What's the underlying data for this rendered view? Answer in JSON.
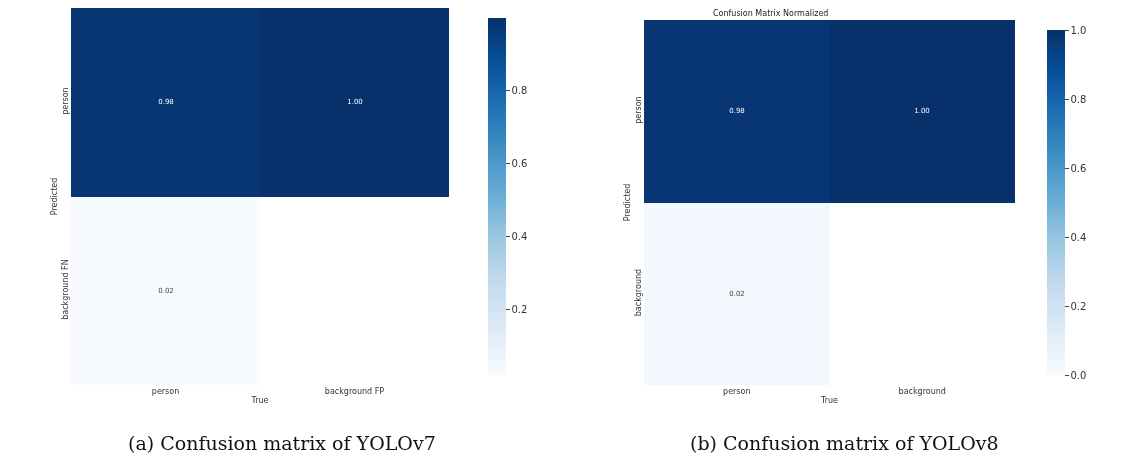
{
  "chart_data": [
    {
      "type": "heatmap",
      "xlabel": "True",
      "ylabel": "Predicted",
      "categories": [
        "person",
        "background FP"
      ],
      "y_categories": [
        "person",
        "background FN"
      ],
      "cells": [
        [
          0.98,
          1.0
        ],
        [
          0.02,
          null
        ]
      ],
      "cell_labels": [
        [
          "0.98",
          "1.00"
        ],
        [
          "0.02",
          null
        ]
      ],
      "clim": [
        0.02,
        1.0
      ],
      "cticks": [
        0.2,
        0.4,
        0.6,
        0.8
      ],
      "annotations": [
        "(a) Confusion matrix of YOLOv7"
      ]
    },
    {
      "type": "heatmap",
      "title": "Confusion Matrix Normalized",
      "xlabel": "True",
      "ylabel": "Predicted",
      "categories": [
        "person",
        "background"
      ],
      "y_categories": [
        "person",
        "background"
      ],
      "cells": [
        [
          0.98,
          1.0
        ],
        [
          0.02,
          null
        ]
      ],
      "cell_labels": [
        [
          "0.98",
          "1.00"
        ],
        [
          "0.02",
          null
        ]
      ],
      "clim": [
        0.0,
        1.0
      ],
      "cticks": [
        {
          "value": 0,
          "label": "0.0"
        },
        0.2,
        0.4,
        0.6,
        0.8,
        {
          "value": 1,
          "label": "1.0"
        }
      ],
      "annotations": [
        "(b) Confusion matrix of YOLOv8"
      ]
    }
  ]
}
